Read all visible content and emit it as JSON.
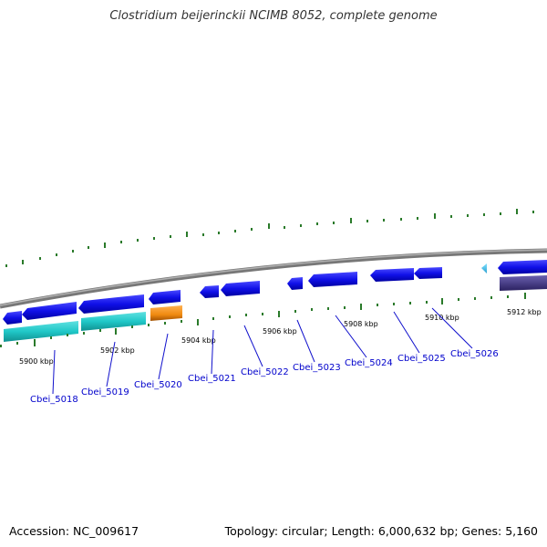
{
  "title": "Clostridium beijerinckii NCIMB 8052, complete genome",
  "accession": "Accession: NC_009617",
  "topology": "Topology: circular; Length: 6,000,632 bp; Genes: 5,160",
  "kbp_labels": [
    "5900 kbp",
    "5902 kbp",
    "5904 kbp",
    "5906 kbp",
    "5908 kbp",
    "5910 kbp",
    "5912 kbp"
  ],
  "gene_labels": [
    "Cbei_5018",
    "Cbei_5019",
    "Cbei_5020",
    "Cbei_5021",
    "Cbei_5022",
    "Cbei_5023",
    "Cbei_5024",
    "Cbei_5025",
    "Cbei_5026"
  ],
  "colors": {
    "backbone": "#888888",
    "cds": "#1010e8",
    "cds_alt": "#3ab4d8",
    "cyan": "#20c8c8",
    "orange": "#f08a10",
    "purple": "#4a3f8c",
    "ticks": "#2a7a2a",
    "leader": "#1010cc"
  }
}
